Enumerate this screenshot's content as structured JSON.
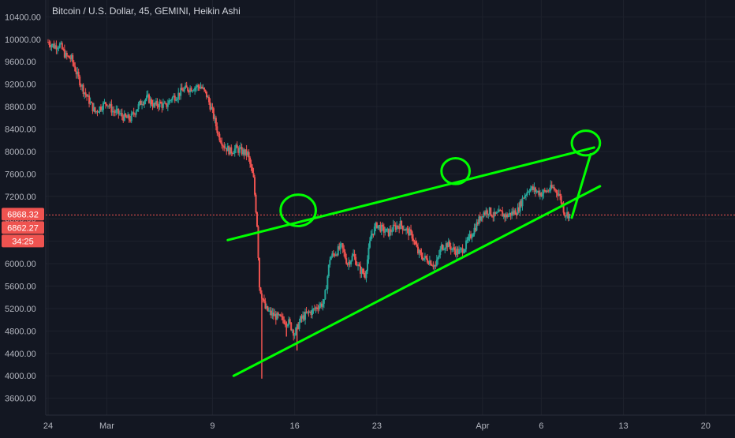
{
  "header": {
    "symbol": "Bitcoin / U.S. Dollar",
    "interval": "45",
    "exchange": "GEMINI",
    "chart_style": "Heikin Ashi"
  },
  "price_badges": [
    {
      "text": "6868.32",
      "color": "#ef5350"
    },
    {
      "text": "6862.27",
      "color": "#ef5350"
    },
    {
      "text": "34:25",
      "color": "#ef5350"
    }
  ],
  "colors": {
    "background": "#131722",
    "grid": "#1e222d",
    "up": "#26a69a",
    "down": "#ef5350",
    "annotation": "#00ff00",
    "axis_text": "#b2b5be"
  },
  "chart_data": {
    "type": "candlestick",
    "title": "Bitcoin / U.S. Dollar, 45, GEMINI, Heikin Ashi",
    "y_ticks": [
      "10400.00",
      "10000.00",
      "9600.00",
      "9200.00",
      "8800.00",
      "8400.00",
      "8000.00",
      "7600.00",
      "7200.00",
      "6800.00",
      "6400.00",
      "6000.00",
      "5600.00",
      "5200.00",
      "4800.00",
      "4400.00",
      "4000.00",
      "3600.00"
    ],
    "ylim": [
      3300,
      10700
    ],
    "x_ticks": [
      "24",
      "Mar",
      "9",
      "16",
      "23",
      "Apr",
      "6",
      "13",
      "20"
    ],
    "x_tick_days": [
      0,
      5,
      14,
      21,
      28,
      37,
      42,
      49,
      56
    ],
    "xlim": [
      -0.2,
      58.5
    ],
    "current_price": 6868.32,
    "price_path": [
      [
        0,
        9950
      ],
      [
        0.5,
        9880
      ],
      [
        1,
        9900
      ],
      [
        1.5,
        9700
      ],
      [
        2,
        9650
      ],
      [
        2.5,
        9350
      ],
      [
        3,
        9100
      ],
      [
        3.5,
        8900
      ],
      [
        4,
        8700
      ],
      [
        4.5,
        8800
      ],
      [
        5,
        8880
      ],
      [
        5.5,
        8720
      ],
      [
        6,
        8680
      ],
      [
        6.5,
        8600
      ],
      [
        7,
        8580
      ],
      [
        7.5,
        8750
      ],
      [
        8,
        8900
      ],
      [
        8.5,
        8950
      ],
      [
        9,
        8820
      ],
      [
        9.5,
        8850
      ],
      [
        10,
        8800
      ],
      [
        10.5,
        8950
      ],
      [
        11,
        9000
      ],
      [
        11.5,
        9100
      ],
      [
        12,
        9120
      ],
      [
        12.5,
        9150
      ],
      [
        13,
        9160
      ],
      [
        13.5,
        9000
      ],
      [
        14,
        8700
      ],
      [
        14.5,
        8300
      ],
      [
        15,
        8100
      ],
      [
        15.5,
        8000
      ],
      [
        16,
        8050
      ],
      [
        16.5,
        8000
      ],
      [
        17,
        7950
      ],
      [
        17.5,
        7500
      ],
      [
        17.8,
        6700
      ],
      [
        18,
        5600
      ],
      [
        18.5,
        5200
      ],
      [
        19,
        5100
      ],
      [
        19.5,
        5050
      ],
      [
        20,
        5000
      ],
      [
        20.5,
        4950
      ],
      [
        21,
        4750
      ],
      [
        21.5,
        5000
      ],
      [
        22,
        5100
      ],
      [
        22.5,
        5150
      ],
      [
        23,
        5250
      ],
      [
        23.5,
        5300
      ],
      [
        24,
        6100
      ],
      [
        24.5,
        6200
      ],
      [
        25,
        6300
      ],
      [
        25.5,
        6000
      ],
      [
        26,
        6150
      ],
      [
        26.5,
        5900
      ],
      [
        27,
        5800
      ],
      [
        27.5,
        6500
      ],
      [
        28,
        6700
      ],
      [
        28.5,
        6600
      ],
      [
        29,
        6550
      ],
      [
        29.5,
        6650
      ],
      [
        30,
        6700
      ],
      [
        30.5,
        6600
      ],
      [
        31,
        6500
      ],
      [
        31.5,
        6200
      ],
      [
        32,
        6100
      ],
      [
        32.5,
        6050
      ],
      [
        33,
        5950
      ],
      [
        33.5,
        6300
      ],
      [
        34,
        6350
      ],
      [
        34.5,
        6250
      ],
      [
        35,
        6200
      ],
      [
        35.5,
        6300
      ],
      [
        36,
        6500
      ],
      [
        36.5,
        6700
      ],
      [
        37,
        6900
      ],
      [
        37.5,
        6950
      ],
      [
        38,
        6850
      ],
      [
        38.5,
        6900
      ],
      [
        39,
        6850
      ],
      [
        39.5,
        6900
      ],
      [
        40,
        6950
      ],
      [
        40.5,
        7200
      ],
      [
        41,
        7350
      ],
      [
        41.5,
        7300
      ],
      [
        42,
        7250
      ],
      [
        42.5,
        7300
      ],
      [
        43,
        7350
      ],
      [
        43.5,
        7250
      ],
      [
        44,
        6900
      ],
      [
        44.5,
        6868
      ]
    ],
    "bottom_wicks": [
      [
        18.2,
        3950
      ],
      [
        21.2,
        4450
      ],
      [
        20.3,
        4700
      ]
    ],
    "annotations": {
      "lines": [
        {
          "from": [
            15.3,
            6420
          ],
          "to": [
            46.5,
            8070
          ]
        },
        {
          "from": [
            15.8,
            4000
          ],
          "to": [
            47.0,
            7380
          ]
        },
        {
          "from": [
            44.6,
            6820
          ],
          "to": [
            46.2,
            7950
          ]
        }
      ],
      "circles": [
        {
          "cx": 21.3,
          "cy": 6950,
          "rx": 1.5,
          "ry": 280
        },
        {
          "cx": 34.7,
          "cy": 7650,
          "rx": 1.2,
          "ry": 230
        },
        {
          "cx": 45.8,
          "cy": 8150,
          "rx": 1.2,
          "ry": 220
        }
      ]
    }
  }
}
